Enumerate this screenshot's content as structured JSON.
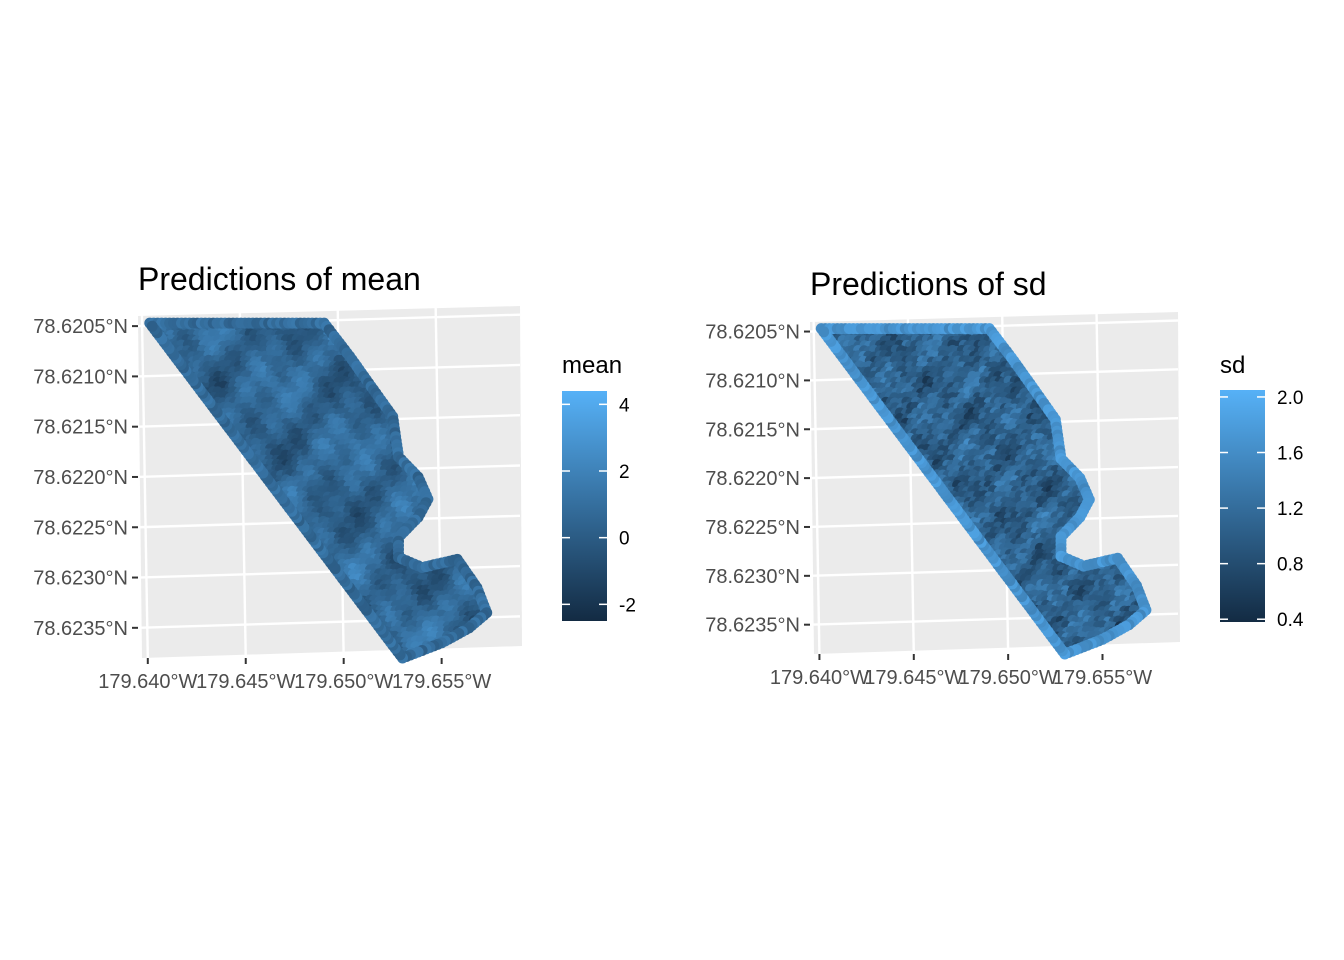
{
  "chart_data": [
    {
      "type": "heatmap",
      "title": "Predictions of mean",
      "xlabel": "",
      "ylabel": "",
      "x_tick_labels": [
        "179.640°W",
        "179.645°W",
        "179.650°W",
        "179.655°W"
      ],
      "y_tick_labels": [
        "78.6205°N",
        "78.6210°N",
        "78.6215°N",
        "78.6220°N",
        "78.6225°N",
        "78.6230°N",
        "78.6235°N"
      ],
      "x_ticks_deg_w": [
        179.64,
        179.645,
        179.65,
        179.655
      ],
      "y_ticks_deg_n": [
        78.6205,
        78.621,
        78.6215,
        78.622,
        78.6225,
        78.623,
        78.6235
      ],
      "xlim_deg_w": [
        179.6395,
        179.659
      ],
      "ylim_deg_n": [
        78.6238,
        78.6203
      ],
      "region_outline_lon_lat": [
        [
          179.6401,
          78.62047
        ],
        [
          179.649,
          78.62047
        ],
        [
          179.6503,
          78.6208
        ],
        [
          179.6514,
          78.6211
        ],
        [
          179.6525,
          78.6214
        ],
        [
          179.6528,
          78.6218
        ],
        [
          179.6538,
          78.622
        ],
        [
          179.6543,
          78.62222
        ],
        [
          179.6538,
          78.6224
        ],
        [
          179.6528,
          78.6226
        ],
        [
          179.6528,
          78.6228
        ],
        [
          179.654,
          78.6229
        ],
        [
          179.6558,
          78.62282
        ],
        [
          179.6568,
          78.6231
        ],
        [
          179.6573,
          78.62335
        ],
        [
          179.6564,
          78.6235
        ],
        [
          179.655,
          78.62365
        ],
        [
          179.653,
          78.6238
        ]
      ],
      "color_scale": {
        "title": "mean",
        "breaks": [
          4,
          2,
          0,
          -2
        ],
        "break_labels": [
          "4",
          "2",
          "0",
          "-2"
        ],
        "limits": [
          -2.5,
          4.4
        ],
        "low_color": "#132b43",
        "high_color": "#56b1f7"
      },
      "field": {
        "min": -2.5,
        "max": 4.4,
        "typical_range": [
          -1.5,
          2.5
        ],
        "pattern": "spatially smooth random field, mostly mid-dark blue"
      },
      "grid": true,
      "legend_position": "right"
    },
    {
      "type": "heatmap",
      "title": "Predictions of sd",
      "xlabel": "",
      "ylabel": "",
      "x_tick_labels": [
        "179.640°W",
        "179.645°W",
        "179.650°W",
        "179.655°W"
      ],
      "y_tick_labels": [
        "78.6205°N",
        "78.6210°N",
        "78.6215°N",
        "78.6220°N",
        "78.6225°N",
        "78.6230°N",
        "78.6235°N"
      ],
      "x_ticks_deg_w": [
        179.64,
        179.645,
        179.65,
        179.655
      ],
      "y_ticks_deg_n": [
        78.6205,
        78.621,
        78.6215,
        78.622,
        78.6225,
        78.623,
        78.6235
      ],
      "xlim_deg_w": [
        179.6395,
        179.659
      ],
      "ylim_deg_n": [
        78.6238,
        78.6203
      ],
      "region_outline_lon_lat": [
        [
          179.6401,
          78.62047
        ],
        [
          179.649,
          78.62047
        ],
        [
          179.6503,
          78.6208
        ],
        [
          179.6514,
          78.6211
        ],
        [
          179.6525,
          78.6214
        ],
        [
          179.6528,
          78.6218
        ],
        [
          179.6538,
          78.622
        ],
        [
          179.6543,
          78.62222
        ],
        [
          179.6538,
          78.6224
        ],
        [
          179.6528,
          78.6226
        ],
        [
          179.6528,
          78.6228
        ],
        [
          179.654,
          78.6229
        ],
        [
          179.6558,
          78.62282
        ],
        [
          179.6568,
          78.6231
        ],
        [
          179.6573,
          78.62335
        ],
        [
          179.6564,
          78.6235
        ],
        [
          179.655,
          78.62365
        ],
        [
          179.653,
          78.6238
        ]
      ],
      "color_scale": {
        "title": "sd",
        "breaks": [
          2.0,
          1.6,
          1.2,
          0.8,
          0.4
        ],
        "break_labels": [
          "2.0",
          "1.6",
          "1.2",
          "0.8",
          "0.4"
        ],
        "limits": [
          0.38,
          2.05
        ],
        "low_color": "#132b43",
        "high_color": "#56b1f7"
      },
      "field": {
        "min": 0.38,
        "max": 2.05,
        "typical_range": [
          0.6,
          1.5
        ],
        "pattern": "noisy field, higher along the region boundary"
      },
      "grid": true,
      "legend_position": "right"
    }
  ]
}
